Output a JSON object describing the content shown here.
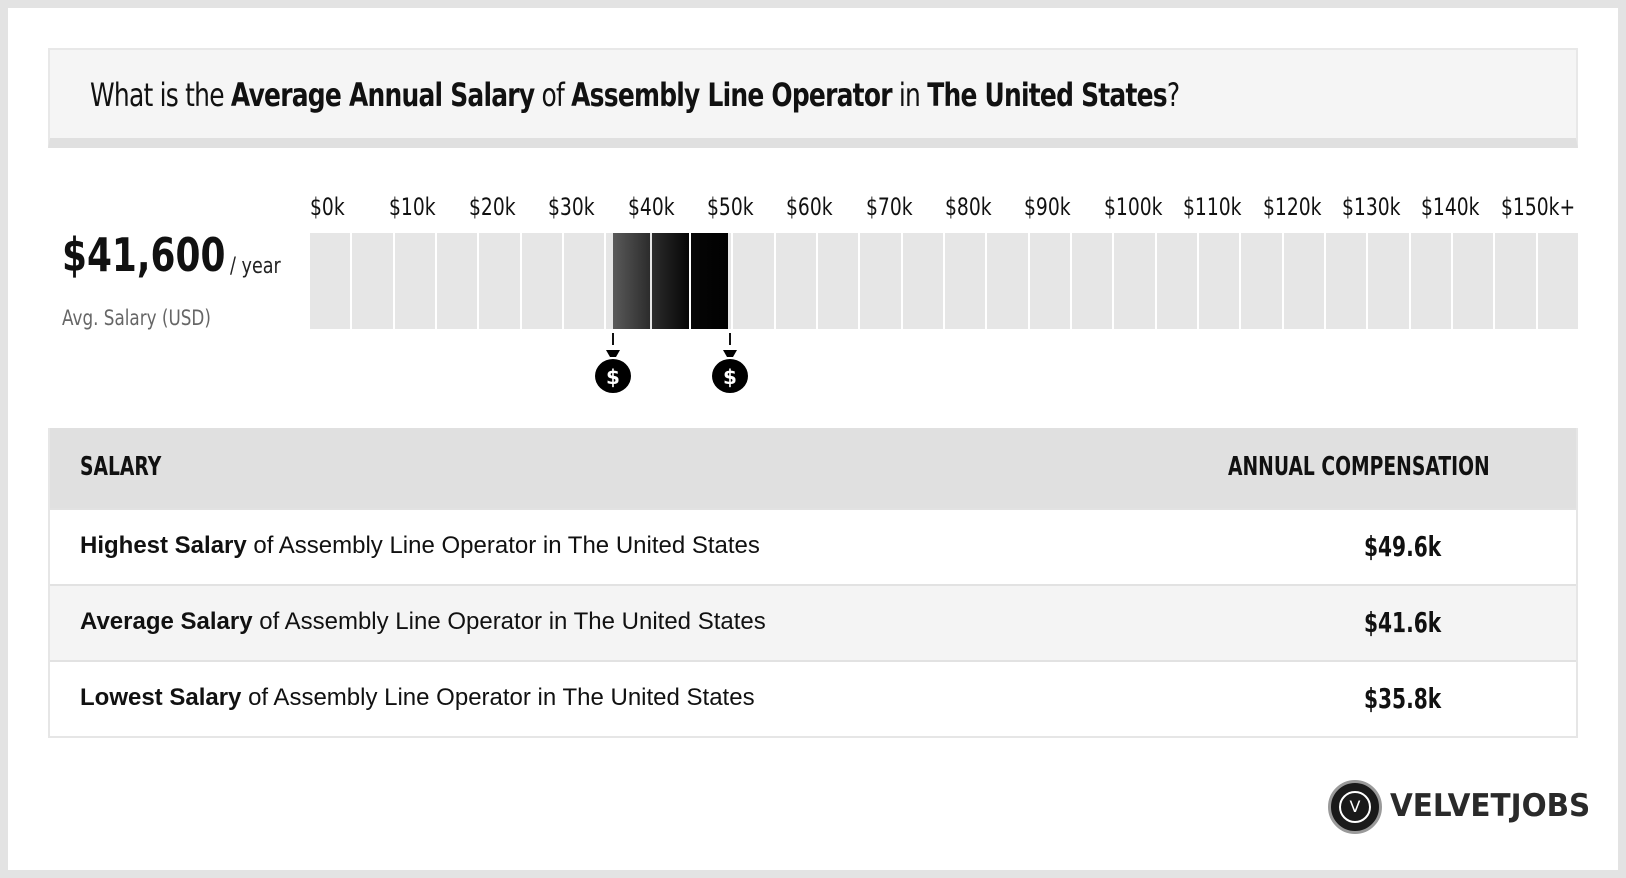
{
  "question": {
    "prefix": "What is the ",
    "metric": "Average Annual Salary",
    "of": " of ",
    "job": "Assembly Line Operator",
    "in": " in ",
    "location": "The United States",
    "suffix": "?"
  },
  "average": {
    "amount": "$41,600",
    "per": "/ year",
    "label": "Avg. Salary (USD)"
  },
  "chart_data": {
    "type": "bar",
    "categories": [
      "$0k",
      "$10k",
      "$20k",
      "$30k",
      "$40k",
      "$50k",
      "$60k",
      "$70k",
      "$80k",
      "$90k",
      "$100k",
      "$110k",
      "$120k",
      "$130k",
      "$140k",
      "$150k+"
    ],
    "range_low": 35800,
    "average": 41600,
    "range_high": 49600,
    "xlim": [
      0,
      150000
    ],
    "markers": [
      35800,
      49600
    ],
    "colors": {
      "empty": "#e6e6e6",
      "gradient_start": "#5a5a5a",
      "gradient_end": "#050505"
    }
  },
  "table": {
    "headers": {
      "salary": "SALARY",
      "comp": "ANNUAL COMPENSATION"
    },
    "rows": [
      {
        "bold": "Highest Salary",
        "rest": " of Assembly Line Operator in The United States",
        "value": "$49.6k"
      },
      {
        "bold": "Average Salary",
        "rest": " of Assembly Line Operator in The United States",
        "value": "$41.6k"
      },
      {
        "bold": "Lowest Salary",
        "rest": " of Assembly Line Operator in The United States",
        "value": "$35.8k"
      }
    ]
  },
  "logo": {
    "mark": "V",
    "word": "VELVETJOBS"
  }
}
